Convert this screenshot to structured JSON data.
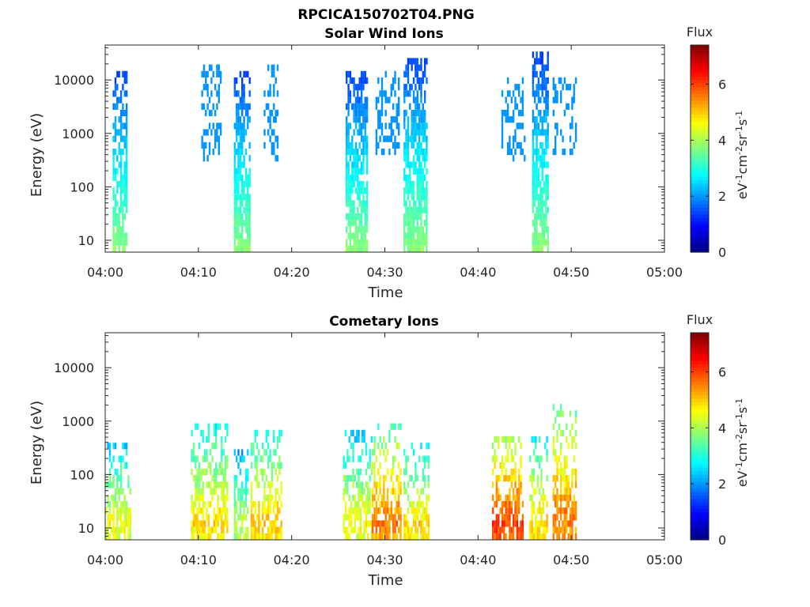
{
  "figure_title": "RPCICA150702T04.PNG",
  "chart_data": [
    {
      "type": "heatmap",
      "title": "Solar Wind Ions",
      "xlabel": "Time",
      "ylabel": "Energy (eV)",
      "x_ticks": [
        "04:00",
        "04:10",
        "04:20",
        "04:30",
        "04:40",
        "04:50",
        "05:00"
      ],
      "y_ticks": [
        "10",
        "100",
        "1000",
        "10000"
      ],
      "x_range_minutes": [
        0,
        60
      ],
      "y_range_eV": [
        6,
        45000
      ],
      "y_scale": "log",
      "colorbar": {
        "title": "Flux",
        "label": "eV-1cm-2sr-1s-1",
        "label_parts": [
          [
            "eV",
            ""
          ],
          [
            "-1",
            "sup"
          ],
          [
            "cm",
            ""
          ],
          [
            "-2",
            "sup"
          ],
          [
            "sr",
            ""
          ],
          [
            "-1",
            "sup"
          ],
          [
            "s",
            ""
          ],
          [
            "-1",
            "sup"
          ]
        ],
        "ticks": [
          "0",
          "2",
          "4",
          "6"
        ],
        "range": [
          0,
          7.4
        ],
        "colormap": "jet"
      },
      "bursts": [
        {
          "t0": 0.8,
          "t1": 2.3,
          "emax": 14000,
          "fmax": 3.8
        },
        {
          "t0": 10.3,
          "t1": 12.3,
          "emax": 22000,
          "fmax": 2.0,
          "emin": 300
        },
        {
          "t0": 13.8,
          "t1": 15.5,
          "emax": 14000,
          "fmax": 3.8
        },
        {
          "t0": 17.0,
          "t1": 18.5,
          "emax": 20000,
          "fmax": 2.0,
          "emin": 300
        },
        {
          "t0": 25.8,
          "t1": 28.0,
          "emax": 14000,
          "fmax": 3.8
        },
        {
          "t0": 29.0,
          "t1": 31.5,
          "emax": 16000,
          "fmax": 2.0,
          "emin": 400
        },
        {
          "t0": 32.0,
          "t1": 34.6,
          "emax": 28000,
          "fmax": 3.8
        },
        {
          "t0": 42.5,
          "t1": 45.0,
          "emax": 10000,
          "fmax": 2.0,
          "emin": 300
        },
        {
          "t0": 45.8,
          "t1": 47.5,
          "emax": 30000,
          "fmax": 3.8
        },
        {
          "t0": 48.0,
          "t1": 50.5,
          "emax": 11000,
          "fmax": 2.0,
          "emin": 350
        }
      ]
    },
    {
      "type": "heatmap",
      "title": "Cometary Ions",
      "xlabel": "Time",
      "ylabel": "Energy (eV)",
      "x_ticks": [
        "04:00",
        "04:10",
        "04:20",
        "04:30",
        "04:40",
        "04:50",
        "05:00"
      ],
      "y_ticks": [
        "10",
        "100",
        "1000",
        "10000"
      ],
      "x_range_minutes": [
        0,
        60
      ],
      "y_range_eV": [
        6,
        45000
      ],
      "y_scale": "log",
      "colorbar": {
        "title": "Flux",
        "label": "eV-1cm-2sr-1s-1",
        "label_parts": [
          [
            "eV",
            ""
          ],
          [
            "-1",
            "sup"
          ],
          [
            "cm",
            ""
          ],
          [
            "-2",
            "sup"
          ],
          [
            "sr",
            ""
          ],
          [
            "-1",
            "sup"
          ],
          [
            "s",
            ""
          ],
          [
            "-1",
            "sup"
          ]
        ],
        "ticks": [
          "0",
          "2",
          "4",
          "6"
        ],
        "range": [
          0,
          7.4
        ],
        "colormap": "jet"
      },
      "bursts": [
        {
          "t0": 0.0,
          "t1": 2.8,
          "emax": 400,
          "fmax": 4.6
        },
        {
          "t0": 9.2,
          "t1": 13.0,
          "emax": 1000,
          "fmax": 4.9
        },
        {
          "t0": 13.8,
          "t1": 15.2,
          "emax": 300,
          "fmax": 4.3
        },
        {
          "t0": 15.6,
          "t1": 18.8,
          "emax": 700,
          "fmax": 5.1
        },
        {
          "t0": 25.5,
          "t1": 28.5,
          "emax": 600,
          "fmax": 4.7
        },
        {
          "t0": 28.6,
          "t1": 31.6,
          "emax": 800,
          "fmax": 5.6
        },
        {
          "t0": 32.0,
          "t1": 34.8,
          "emax": 400,
          "fmax": 4.9
        },
        {
          "t0": 41.5,
          "t1": 44.8,
          "emax": 500,
          "fmax": 6.1
        },
        {
          "t0": 45.5,
          "t1": 47.5,
          "emax": 500,
          "fmax": 5.0
        },
        {
          "t0": 48.0,
          "t1": 50.5,
          "emax": 2200,
          "fmax": 5.6
        }
      ]
    }
  ]
}
